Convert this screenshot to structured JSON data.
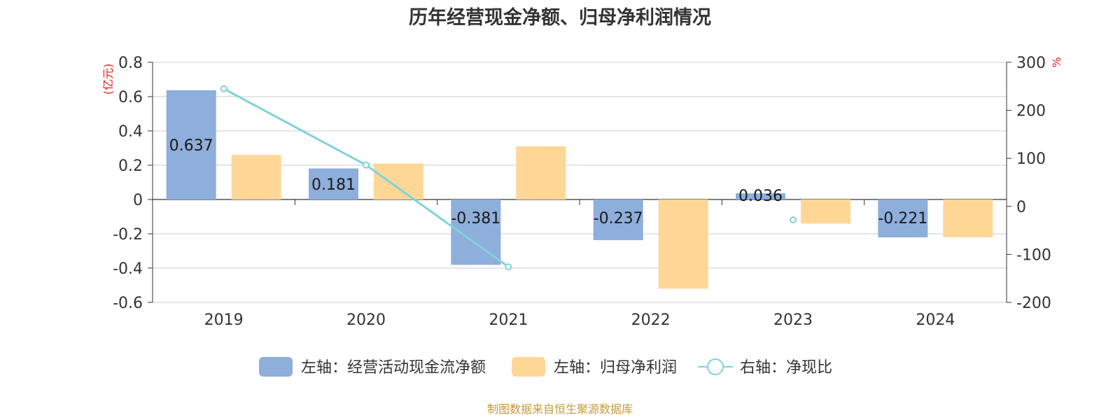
{
  "chart_data": {
    "type": "bar",
    "title": "历年经营现金净额、归母净利润情况",
    "categories": [
      "2019",
      "2020",
      "2021",
      "2022",
      "2023",
      "2024"
    ],
    "left_axis": {
      "unit": "(亿元)",
      "ylim": [
        -0.6,
        0.8
      ],
      "ticks": [
        "0.8",
        "0.6",
        "0.4",
        "0.2",
        "0",
        "-0.2",
        "-0.4",
        "-0.6"
      ]
    },
    "right_axis": {
      "unit": "%",
      "ylim": [
        -200,
        300
      ],
      "ticks": [
        "300",
        "200",
        "100",
        "0",
        "-100",
        "-200"
      ]
    },
    "series": [
      {
        "name": "左轴：经营活动现金流净额",
        "kind": "bar",
        "axis": "left",
        "color": "#8eaedb",
        "values": [
          0.637,
          0.181,
          -0.381,
          -0.237,
          0.036,
          -0.221
        ],
        "labels": [
          "0.637",
          "0.181",
          "-0.381",
          "-0.237",
          "0.036",
          "-0.221"
        ]
      },
      {
        "name": "左轴：归母净利润",
        "kind": "bar",
        "axis": "left",
        "color": "#fed797",
        "values": [
          0.26,
          0.21,
          0.31,
          -0.52,
          -0.14,
          -0.22
        ]
      },
      {
        "name": "右轴：净现比",
        "kind": "line",
        "axis": "right",
        "color": "#7fd3d8",
        "values": [
          245,
          86,
          -126,
          null,
          -28,
          null
        ]
      }
    ],
    "grid": true,
    "legend_position": "bottom"
  },
  "footer": {
    "source": "制图数据来自恒生聚源数据库",
    "color": "#c49a3a"
  },
  "unit_color": "#e02020"
}
